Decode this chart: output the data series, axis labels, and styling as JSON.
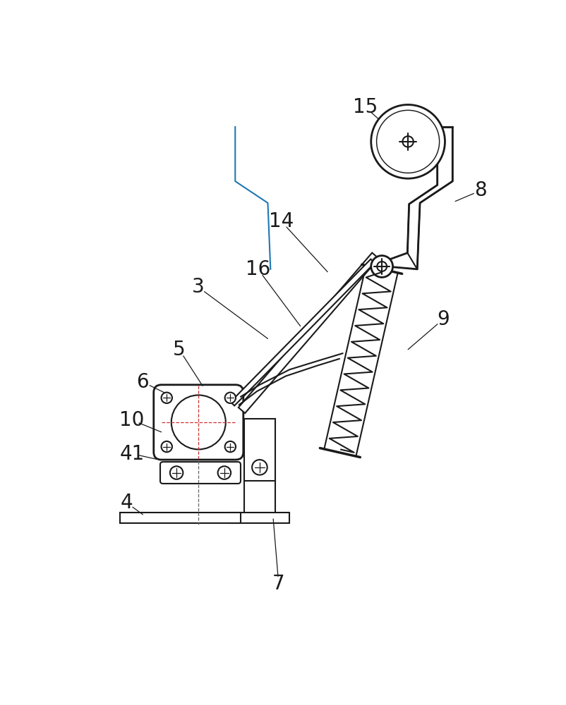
{
  "bg_color": "#ffffff",
  "line_color": "#1a1a1a",
  "dash_color": "#666666",
  "lw": 1.5,
  "tlw": 2.0,
  "fs": 20
}
